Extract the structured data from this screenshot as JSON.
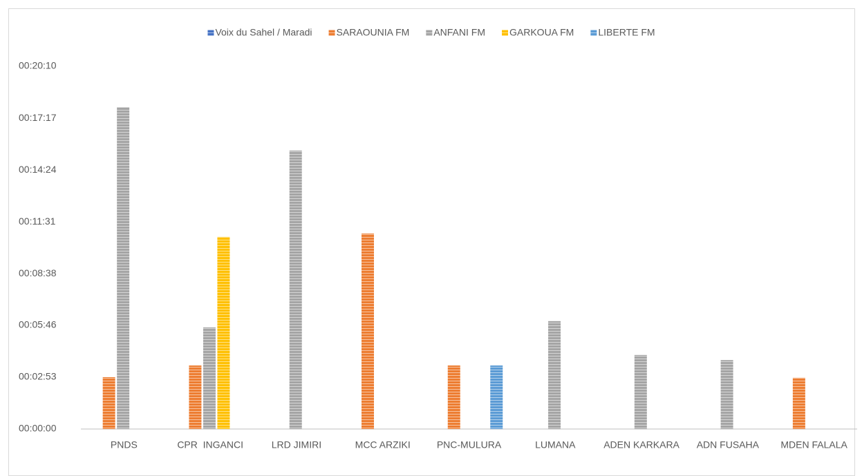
{
  "chart_data": {
    "type": "bar",
    "categories": [
      "PNDS",
      "CPR  INGANCI",
      "LRD JIMIRI",
      "MCC ARZIKI",
      "PNC-MULURA",
      "LUMANA",
      "ADEN KARKARA",
      "ADN FUSAHA",
      "MDEN FALALA"
    ],
    "series": [
      {
        "name": "Voix du Sahel / Maradi",
        "color": "#4472c4",
        "values": [
          null,
          null,
          null,
          null,
          null,
          null,
          null,
          null,
          null
        ]
      },
      {
        "name": "SARAOUNIA FM",
        "color": "#ed7d31",
        "values": [
          173,
          212,
          null,
          652,
          212,
          null,
          null,
          null,
          171
        ]
      },
      {
        "name": "ANFANI FM",
        "color": "#a5a5a5",
        "values": [
          1074,
          339,
          929,
          null,
          null,
          360,
          247,
          230,
          null
        ]
      },
      {
        "name": "GARKOUA FM",
        "color": "#ffc000",
        "values": [
          null,
          641,
          null,
          null,
          null,
          null,
          null,
          null,
          null
        ]
      },
      {
        "name": "LIBERTE FM",
        "color": "#5b9bd5",
        "values": [
          null,
          null,
          null,
          null,
          212,
          null,
          null,
          null,
          null
        ]
      }
    ],
    "ylim": [
      0,
      1210
    ],
    "yticks": [
      {
        "value": 0,
        "label": "00:00:00"
      },
      {
        "value": 173,
        "label": "00:02:53"
      },
      {
        "value": 346,
        "label": "00:05:46"
      },
      {
        "value": 518,
        "label": "00:08:38"
      },
      {
        "value": 691,
        "label": "00:11:31"
      },
      {
        "value": 864,
        "label": "00:14:24"
      },
      {
        "value": 1037,
        "label": "00:17:17"
      },
      {
        "value": 1210,
        "label": "00:20:10"
      }
    ],
    "grid": false,
    "legend": "top"
  }
}
